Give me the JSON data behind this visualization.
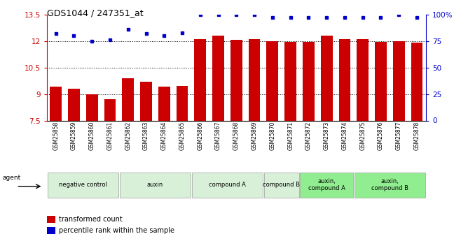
{
  "title": "GDS1044 / 247351_at",
  "samples": [
    "GSM25858",
    "GSM25859",
    "GSM25860",
    "GSM25861",
    "GSM25862",
    "GSM25863",
    "GSM25864",
    "GSM25865",
    "GSM25866",
    "GSM25867",
    "GSM25868",
    "GSM25869",
    "GSM25870",
    "GSM25871",
    "GSM25872",
    "GSM25873",
    "GSM25874",
    "GSM25875",
    "GSM25876",
    "GSM25877",
    "GSM25878"
  ],
  "bar_values": [
    9.4,
    9.3,
    9.0,
    8.7,
    9.9,
    9.7,
    9.4,
    9.45,
    12.1,
    12.3,
    12.05,
    12.1,
    12.0,
    11.95,
    11.95,
    12.3,
    12.1,
    12.1,
    11.95,
    12.0,
    11.9
  ],
  "dot_values": [
    82,
    80,
    75,
    76,
    86,
    82,
    80,
    83,
    100,
    100,
    100,
    100,
    97,
    97,
    97,
    97,
    97,
    97,
    97,
    100,
    97
  ],
  "bar_color": "#cc0000",
  "dot_color": "#0000cc",
  "ylim_left": [
    7.5,
    13.5
  ],
  "ylim_right": [
    0,
    100
  ],
  "yticks_left": [
    7.5,
    9.0,
    10.5,
    12.0,
    13.5
  ],
  "ytick_labels_left": [
    "7.5",
    "9",
    "10.5",
    "12",
    "13.5"
  ],
  "yticks_right": [
    0,
    25,
    50,
    75,
    100
  ],
  "ytick_labels_right": [
    "0",
    "25",
    "50",
    "75",
    "100%"
  ],
  "hlines": [
    9.0,
    10.5,
    12.0
  ],
  "groups": [
    {
      "label": "negative control",
      "start": 0,
      "end": 4,
      "color": "#d8f0d8"
    },
    {
      "label": "auxin",
      "start": 4,
      "end": 8,
      "color": "#d8f0d8"
    },
    {
      "label": "compound A",
      "start": 8,
      "end": 12,
      "color": "#d8f0d8"
    },
    {
      "label": "compound B",
      "start": 12,
      "end": 14,
      "color": "#d8f0d8"
    },
    {
      "label": "auxin,\ncompound A",
      "start": 14,
      "end": 17,
      "color": "#90ee90"
    },
    {
      "label": "auxin,\ncompound B",
      "start": 17,
      "end": 21,
      "color": "#90ee90"
    }
  ],
  "legend_bar_label": "transformed count",
  "legend_dot_label": "percentile rank within the sample",
  "agent_label": "agent",
  "tick_color_left": "#cc0000",
  "tick_color_right": "#0000cc",
  "spine_color": "#aaaaaa"
}
